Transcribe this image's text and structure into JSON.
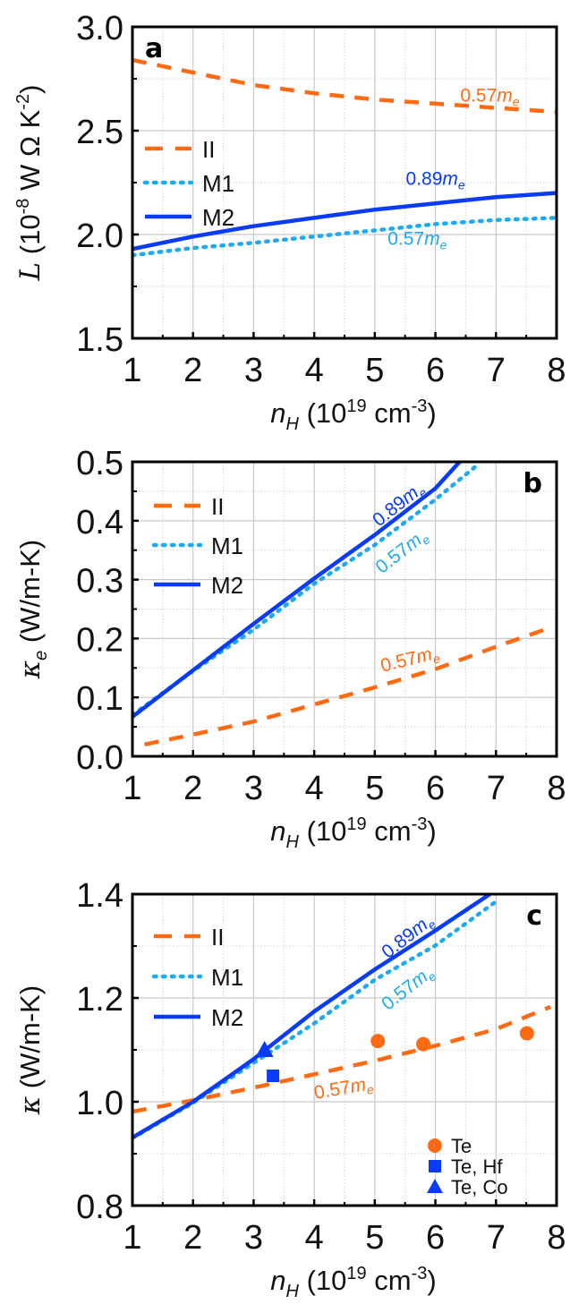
{
  "colors": {
    "II": "#FF6A13",
    "M1": "#1EAAF1",
    "M2": "#0A3CF5",
    "Te": "#FF6A13",
    "Te_Hf": "#0A3CF5",
    "Te_Co": "#0A3CF5"
  },
  "chart_data": [
    {
      "type": "line",
      "panel": "a",
      "title": "",
      "xlabel": "n_H (10^19 cm^-3)",
      "xlabel_parts": {
        "var": "n",
        "sub": "H",
        "pre": " (10",
        "sup1": "19",
        "mid": " cm",
        "sup2": "-3",
        "post": ")"
      },
      "ylabel": "L (10^-8 W Ω K^-2)",
      "ylabel_parts": {
        "var": "L",
        "pre": " (10",
        "sup1": "-8",
        "mid": " W Ω K",
        "sup2": "-2",
        "post": ")"
      },
      "xlim": [
        1,
        8
      ],
      "ylim": [
        1.5,
        3.0
      ],
      "xticks": [
        1,
        2,
        3,
        4,
        5,
        6,
        7,
        8
      ],
      "xtick_labels": [
        "1",
        "2",
        "3",
        "4",
        "5",
        "6",
        "7",
        "8"
      ],
      "yticks": [
        1.5,
        2.0,
        2.5,
        3.0
      ],
      "ytick_labels": [
        "1.5",
        "2.0",
        "2.5",
        "3.0"
      ],
      "grid": true,
      "legend_position": "left",
      "series": [
        {
          "name": "II",
          "style": "dashed",
          "x": [
            1,
            2,
            3,
            4,
            5,
            6,
            7,
            8
          ],
          "y": [
            2.84,
            2.78,
            2.72,
            2.68,
            2.65,
            2.63,
            2.61,
            2.59
          ]
        },
        {
          "name": "M1",
          "style": "dotted",
          "x": [
            1,
            2,
            3,
            4,
            5,
            6,
            7,
            8
          ],
          "y": [
            1.9,
            1.935,
            1.96,
            1.99,
            2.02,
            2.05,
            2.07,
            2.08
          ]
        },
        {
          "name": "M2",
          "style": "solid",
          "x": [
            1,
            2,
            3,
            4,
            5,
            6,
            7,
            8
          ],
          "y": [
            1.93,
            1.99,
            2.04,
            2.08,
            2.12,
            2.15,
            2.18,
            2.2
          ]
        }
      ],
      "annotations": [
        {
          "text": "0.57",
          "italic": "m",
          "sub": "e",
          "series": "II",
          "x": 6.9,
          "y": 2.64,
          "angle": 0
        },
        {
          "text": "0.89",
          "italic": "m",
          "sub": "e",
          "series": "M2",
          "x": 6.0,
          "y": 2.24,
          "angle": 0
        },
        {
          "text": "0.57",
          "italic": "m",
          "sub": "e",
          "series": "M1",
          "x": 5.7,
          "y": 1.95,
          "angle": 0
        }
      ],
      "panel_letter": "a",
      "panel_letter_position": "top-left"
    },
    {
      "type": "line",
      "panel": "b",
      "title": "",
      "xlabel": "n_H (10^19 cm^-3)",
      "xlabel_parts": {
        "var": "n",
        "sub": "H",
        "pre": " (10",
        "sup1": "19",
        "mid": " cm",
        "sup2": "-3",
        "post": ")"
      },
      "ylabel": "κ_e (W/m-K)",
      "ylabel_parts": {
        "var": "κ",
        "sub": "e",
        "post": " (W/m-K)"
      },
      "xlim": [
        1,
        8
      ],
      "ylim": [
        0.0,
        0.5
      ],
      "xticks": [
        1,
        2,
        3,
        4,
        5,
        6,
        7,
        8
      ],
      "xtick_labels": [
        "1",
        "2",
        "3",
        "4",
        "5",
        "6",
        "7",
        "8"
      ],
      "yticks": [
        0.0,
        0.1,
        0.2,
        0.3,
        0.4,
        0.5
      ],
      "ytick_labels": [
        "0.0",
        "0.1",
        "0.2",
        "0.3",
        "0.4",
        "0.5"
      ],
      "grid": true,
      "legend_position": "top-left",
      "series": [
        {
          "name": "II",
          "style": "dashed",
          "x": [
            1.2,
            2,
            3,
            4,
            5,
            6,
            7,
            7.8
          ],
          "y": [
            0.02,
            0.037,
            0.059,
            0.088,
            0.117,
            0.148,
            0.186,
            0.215
          ]
        },
        {
          "name": "M1",
          "style": "dotted",
          "x": [
            1,
            2,
            3,
            4,
            5,
            6,
            6.65
          ],
          "y": [
            0.07,
            0.145,
            0.215,
            0.293,
            0.359,
            0.436,
            0.491
          ]
        },
        {
          "name": "M2",
          "style": "solid",
          "x": [
            1,
            2,
            3,
            4,
            5,
            6,
            6.4
          ],
          "y": [
            0.067,
            0.146,
            0.225,
            0.302,
            0.376,
            0.455,
            0.5
          ]
        }
      ],
      "annotations": [
        {
          "text": "0.89",
          "italic": "m",
          "sub": "e",
          "series": "M2",
          "x": 5.45,
          "y": 0.42,
          "angle": -38
        },
        {
          "text": "0.57",
          "italic": "m",
          "sub": "e",
          "series": "M1",
          "x": 5.5,
          "y": 0.34,
          "angle": -38
        },
        {
          "text": "0.57",
          "italic": "m",
          "sub": "e",
          "series": "II",
          "x": 5.6,
          "y": 0.155,
          "angle": -14
        }
      ],
      "panel_letter": "b",
      "panel_letter_position": "top-right"
    },
    {
      "type": "line",
      "panel": "c",
      "title": "",
      "xlabel": "n_H (10^19 cm^-3)",
      "xlabel_parts": {
        "var": "n",
        "sub": "H",
        "pre": " (10",
        "sup1": "19",
        "mid": " cm",
        "sup2": "-3",
        "post": ")"
      },
      "ylabel": "κ (W/m-K)",
      "ylabel_parts": {
        "var": "κ",
        "sub": "",
        "post": " (W/m-K)"
      },
      "xlim": [
        1,
        8
      ],
      "ylim": [
        0.8,
        1.4
      ],
      "xticks": [
        1,
        2,
        3,
        4,
        5,
        6,
        7,
        8
      ],
      "xtick_labels": [
        "1",
        "2",
        "3",
        "4",
        "5",
        "6",
        "7",
        "8"
      ],
      "yticks": [
        0.8,
        1.0,
        1.2,
        1.4
      ],
      "ytick_labels": [
        "0.8",
        "1.0",
        "1.2",
        "1.4"
      ],
      "grid": true,
      "legend_position": "top-left",
      "series": [
        {
          "name": "II",
          "style": "dashed",
          "x": [
            1,
            2,
            3,
            4,
            5,
            6,
            7,
            7.9
          ],
          "y": [
            0.981,
            1.003,
            1.027,
            1.053,
            1.079,
            1.108,
            1.14,
            1.183
          ]
        },
        {
          "name": "M1",
          "style": "dotted",
          "x": [
            1,
            2,
            3,
            4,
            5,
            6,
            7.05
          ],
          "y": [
            0.93,
            0.998,
            1.075,
            1.151,
            1.235,
            1.301,
            1.39
          ]
        },
        {
          "name": "M2",
          "style": "solid",
          "x": [
            1,
            2,
            3,
            4,
            5,
            6,
            6.9
          ],
          "y": [
            0.931,
            1.0,
            1.082,
            1.174,
            1.255,
            1.33,
            1.4
          ]
        }
      ],
      "scatter": [
        {
          "name": "Te",
          "marker": "circle",
          "x": [
            5.05,
            5.8,
            7.51
          ],
          "y": [
            1.117,
            1.111,
            1.132
          ]
        },
        {
          "name": "Te, Hf",
          "marker": "square",
          "x": [
            3.32
          ],
          "y": [
            1.05
          ]
        },
        {
          "name": "Te, Co",
          "marker": "triangle",
          "x": [
            3.18
          ],
          "y": [
            1.1
          ]
        }
      ],
      "annotations": [
        {
          "text": "0.89",
          "italic": "m",
          "sub": "e",
          "series": "M2",
          "x": 5.6,
          "y": 1.31,
          "angle": -38
        },
        {
          "text": "0.57",
          "italic": "m",
          "sub": "e",
          "series": "M1",
          "x": 5.6,
          "y": 1.21,
          "angle": -38
        },
        {
          "text": "0.57",
          "italic": "m",
          "sub": "e",
          "series": "II",
          "x": 4.5,
          "y": 1.015,
          "angle": -10
        }
      ],
      "panel_letter": "c",
      "panel_letter_position": "top-right",
      "scatter_legend_position": "bottom-right"
    }
  ]
}
